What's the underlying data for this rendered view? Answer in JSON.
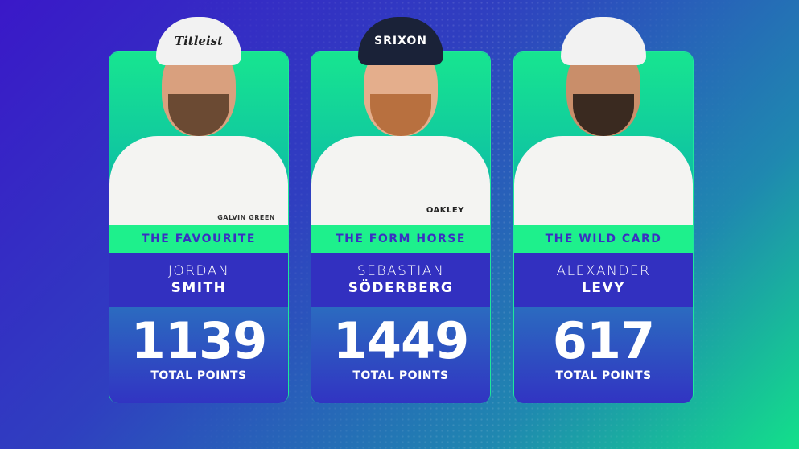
{
  "cards": [
    {
      "label": "THE FAVOURITE",
      "first_name": "JORDAN",
      "last_name": "SMITH",
      "points": "1139",
      "points_label": "TOTAL POINTS",
      "cap_text": "Titleist",
      "shirt_text": "GALVIN GREEN"
    },
    {
      "label": "THE FORM HORSE",
      "first_name": "SEBASTIAN",
      "last_name": "SÖDERBERG",
      "points": "1449",
      "points_label": "TOTAL POINTS",
      "cap_text": "SRIXON",
      "shirt_text": "OAKLEY"
    },
    {
      "label": "THE WILD CARD",
      "first_name": "ALEXANDER",
      "last_name": "LEVY",
      "points": "617",
      "points_label": "TOTAL POINTS",
      "cap_text": "",
      "shirt_text": ""
    }
  ],
  "colors": {
    "accent_green": "#1ef08c",
    "name_band": "#3230c0",
    "label_text": "#3a2fc2"
  }
}
